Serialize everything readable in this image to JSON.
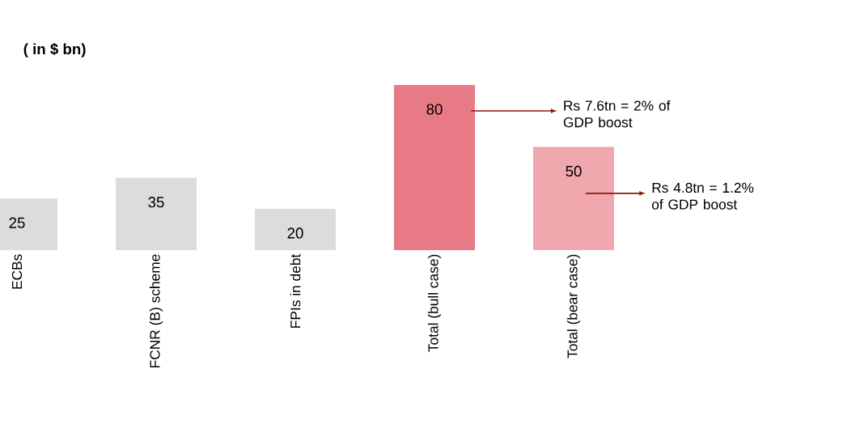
{
  "chart_data": {
    "type": "bar",
    "title": "( in $ bn)",
    "categories": [
      "ECBs",
      "FCNR (B) scheme",
      "FPIs in debt",
      "Total (bull case)",
      "Total (bear case)"
    ],
    "values": [
      25,
      35,
      20,
      80,
      50
    ],
    "colors": [
      "#dcdcde",
      "#dcdcde",
      "#dcdcde",
      "#e87a86",
      "#f0a8ae"
    ],
    "data_labels": true,
    "annotations": [
      "Rs 7.6tn = 2% of GDP boost",
      "Rs 4.8tn = 1.2% of GDP boost"
    ]
  }
}
